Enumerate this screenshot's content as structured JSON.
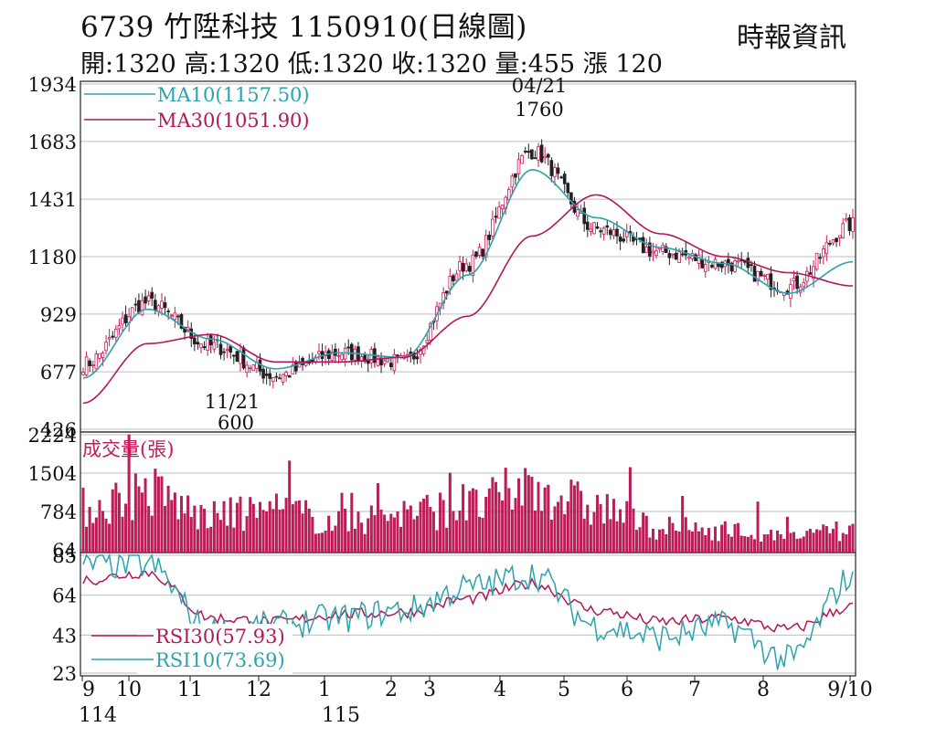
{
  "header": {
    "title": "6739  竹陞科技 1150910(日線圖)",
    "source": "時報資訊",
    "quote": "開:1320 高:1320 低:1320 收:1320 量:455 漲 120"
  },
  "colors": {
    "up": "#d0185a",
    "down": "#222222",
    "ma10": "#2aa3ae",
    "ma30": "#b0185a",
    "volume": "#c8185a",
    "rsi30": "#b0185a",
    "rsi10": "#2aa3ae",
    "grid": "#bdbdbd"
  },
  "chart_data": [
    {
      "type": "line",
      "panel": "price",
      "ylim": [
        426,
        1934
      ],
      "y_ticks": [
        "1934",
        "1683",
        "1431",
        "1180",
        "929",
        "677",
        "426"
      ],
      "legend": [
        "MA10(1157.50)",
        "MA30(1051.90)"
      ],
      "annotations": [
        {
          "date": "04/21",
          "value": "1760",
          "label_date": "04/21",
          "label_value": "1760"
        },
        {
          "date": "11/21",
          "value": "600",
          "label_date": "11/21",
          "label_value": "600"
        }
      ],
      "x_labels": [
        "9",
        "10",
        "11",
        "12",
        "1",
        "2",
        "3",
        "4",
        "5",
        "6",
        "7",
        "8",
        "9/10"
      ],
      "x_sub_labels": [
        "114",
        "115"
      ],
      "monthly_close": [
        710,
        980,
        790,
        660,
        760,
        720,
        1150,
        1640,
        1300,
        1200,
        1150,
        1050,
        1320
      ],
      "series": [
        {
          "name": "MA10",
          "values": [
            650,
            950,
            820,
            690,
            760,
            740,
            1100,
            1560,
            1350,
            1220,
            1150,
            1020,
            1157.5
          ]
        },
        {
          "name": "MA30",
          "values": [
            540,
            800,
            840,
            720,
            720,
            740,
            920,
            1270,
            1450,
            1280,
            1180,
            1110,
            1051.9
          ]
        }
      ]
    },
    {
      "type": "bar",
      "panel": "volume",
      "title": "成交量(張)",
      "ylim": [
        64,
        2224
      ],
      "y_ticks": [
        "2224",
        "1504",
        "784",
        "64"
      ],
      "monthly_avg": [
        900,
        1200,
        700,
        850,
        600,
        800,
        900,
        1300,
        900,
        500,
        450,
        300,
        455
      ]
    },
    {
      "type": "line",
      "panel": "rsi",
      "ylim": [
        23,
        85
      ],
      "y_ticks": [
        "85",
        "64",
        "43",
        "23"
      ],
      "legend": [
        "RSI30(57.93)",
        "RSI10(73.69)"
      ],
      "series": [
        {
          "name": "RSI30",
          "values": [
            72,
            76,
            52,
            50,
            54,
            55,
            62,
            70,
            56,
            50,
            52,
            46,
            57.93
          ]
        },
        {
          "name": "RSI10",
          "values": [
            80,
            80,
            45,
            48,
            52,
            56,
            68,
            75,
            48,
            42,
            48,
            30,
            73.69
          ]
        }
      ]
    }
  ]
}
